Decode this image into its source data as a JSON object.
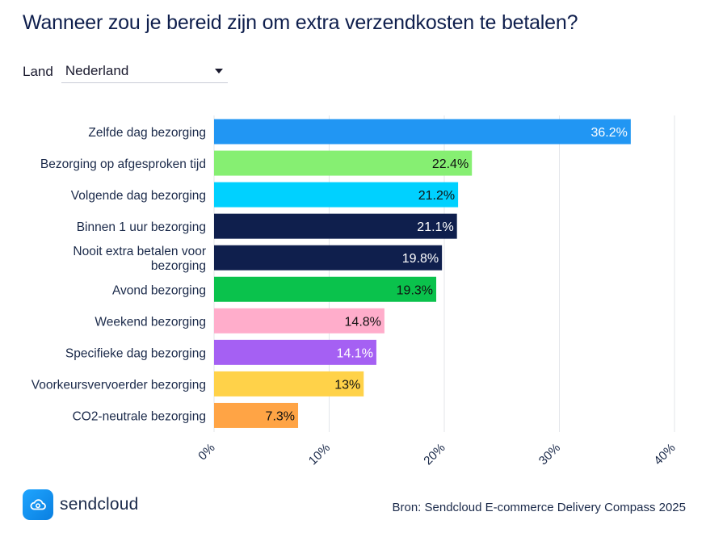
{
  "title": "Wanneer zou je bereid zijn om extra verzendkosten te betalen?",
  "filter": {
    "label": "Land",
    "value": "Nederland"
  },
  "chart_data": {
    "type": "bar",
    "orientation": "horizontal",
    "categories": [
      "Zelfde dag bezorging",
      "Bezorging op afgesproken tijd",
      "Volgende dag bezorging",
      "Binnen 1 uur bezorging",
      "Nooit extra betalen voor bezorging",
      "Avond bezorging",
      "Weekend bezorging",
      "Specifieke dag bezorging",
      "Voorkeursvervoerder bezorging",
      "CO2-neutrale bezorging"
    ],
    "values": [
      36.2,
      22.4,
      21.2,
      21.1,
      19.8,
      19.3,
      14.8,
      14.1,
      13,
      7.3
    ],
    "value_labels": [
      "36.2%",
      "22.4%",
      "21.2%",
      "21.1%",
      "19.8%",
      "19.3%",
      "14.8%",
      "14.1%",
      "13%",
      "7.3%"
    ],
    "colors": [
      "#2196f3",
      "#86ef72",
      "#00d1ff",
      "#0f1f4d",
      "#0f1f4d",
      "#0ac24c",
      "#ffadcb",
      "#a560f3",
      "#ffd249",
      "#ffa445"
    ],
    "label_colors": [
      "#ffffff",
      "#111111",
      "#111111",
      "#ffffff",
      "#ffffff",
      "#111111",
      "#111111",
      "#ffffff",
      "#111111",
      "#111111"
    ],
    "xlim": [
      0,
      40
    ],
    "xticks": [
      0,
      10,
      20,
      30,
      40
    ],
    "xtick_labels": [
      "0%",
      "10%",
      "20%",
      "30%",
      "40%"
    ],
    "grid": true
  },
  "footer": {
    "brand": "sendcloud",
    "source": "Bron: Sendcloud E-commerce Delivery Compass 2025"
  }
}
